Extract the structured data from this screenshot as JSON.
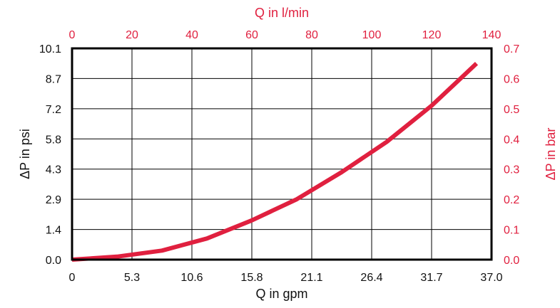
{
  "chart_data": {
    "type": "line",
    "title": "",
    "colors": {
      "series": "#e0203f",
      "red_axis": "#e0203f",
      "black_axis": "#111111",
      "grid": "#000000"
    },
    "x_bottom": {
      "label": "Q in gpm",
      "ticks": [
        "0",
        "5.3",
        "10.6",
        "15.8",
        "21.1",
        "26.4",
        "31.7",
        "37.0"
      ],
      "range": [
        0,
        37.0
      ]
    },
    "x_top": {
      "label": "Q in l/min",
      "ticks": [
        "0",
        "20",
        "40",
        "60",
        "80",
        "100",
        "120",
        "140"
      ],
      "range": [
        0,
        140
      ]
    },
    "y_left": {
      "label": "ΔP in psi",
      "ticks": [
        "0.0",
        "1.4",
        "2.9",
        "4.3",
        "5.8",
        "7.2",
        "8.7",
        "10.1"
      ],
      "range": [
        0,
        10.1
      ]
    },
    "y_right": {
      "label": "ΔP in bar",
      "ticks": [
        "0.0",
        "0.1",
        "0.2",
        "0.3",
        "0.4",
        "0.5",
        "0.6",
        "0.7"
      ],
      "range": [
        0,
        0.7
      ]
    },
    "grid": true,
    "series": [
      {
        "x_unit": "l/min",
        "y_unit": "bar",
        "x": [
          0,
          15,
          30,
          45,
          60,
          75,
          90,
          105,
          120,
          135
        ],
        "y": [
          0.0,
          0.01,
          0.03,
          0.07,
          0.13,
          0.2,
          0.29,
          0.39,
          0.51,
          0.65
        ]
      }
    ]
  }
}
